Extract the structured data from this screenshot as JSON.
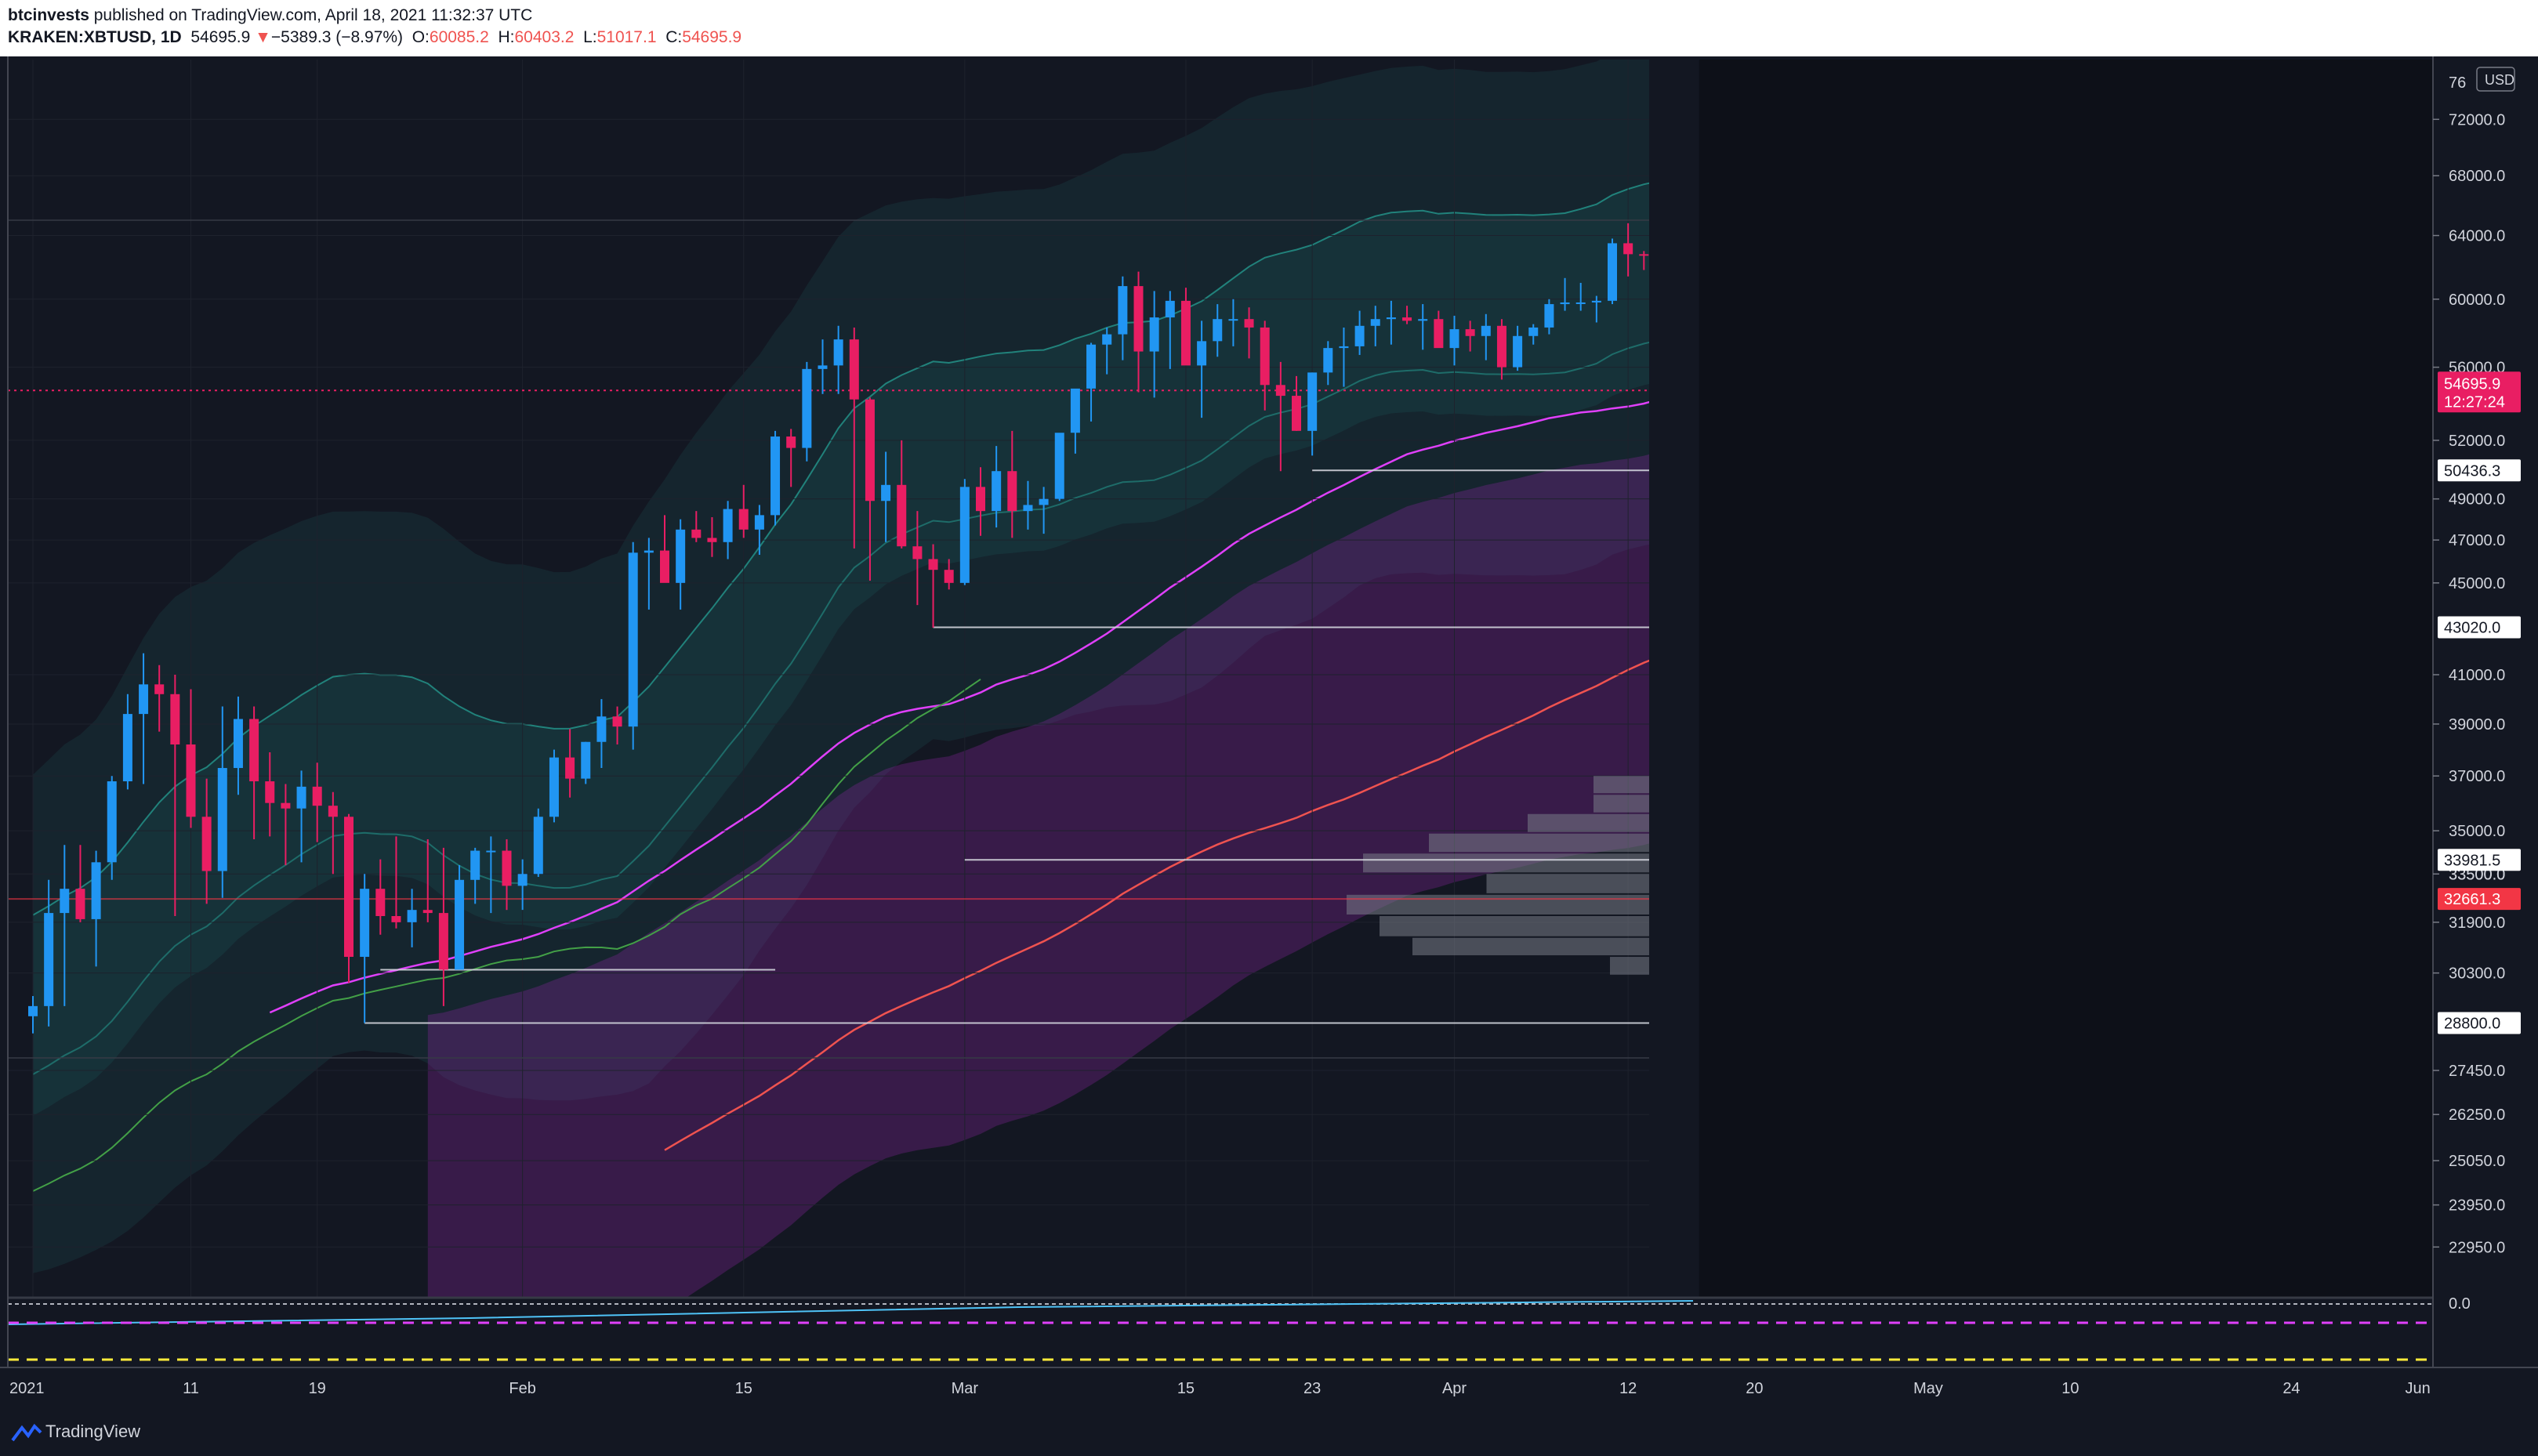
{
  "header": {
    "author": "btcinvests",
    "published_text": "published on TradingView.com, April 18, 2021 11:32:37 UTC",
    "symbol": "KRAKEN:XBTUSD, 1D",
    "last": "54695.9",
    "change_arrow": "▼",
    "change": "−5389.3 (−8.97%)",
    "o_label": "O:",
    "o_value": "60085.2",
    "h_label": "H:",
    "h_value": "60403.2",
    "l_label": "L:",
    "l_value": "51017.1",
    "c_label": "C:",
    "c_value": "54695.9"
  },
  "footer": {
    "brand": "TradingView"
  },
  "colors": {
    "background": "#131722",
    "up": "#2196f3",
    "down": "#e91e63",
    "teal_band": "#26a69a",
    "purple_band": "#9c27b0",
    "volume_profile": "#787b86",
    "zone": "#1b5e20",
    "price_label": "#e91e63",
    "red_level": "#f23645"
  },
  "chart_data": {
    "type": "candlestick",
    "title": "KRAKEN:XBTUSD, 1D",
    "y_scale": "log",
    "ylim": [
      21800,
      76500
    ],
    "currency_label": "USD",
    "y_ticks": [
      22950,
      23950,
      25050,
      26250,
      27450,
      30300,
      31900,
      33500,
      35000,
      37000,
      39000,
      41000,
      45000,
      47000,
      49000,
      52000,
      56000,
      60000,
      64000,
      68000,
      72000
    ],
    "y_tick_labels": [
      "22950.0",
      "23950.0",
      "25050.0",
      "26250.0",
      "27450.0",
      "30300.0",
      "31900.0",
      "33500.0",
      "35000.0",
      "37000.0",
      "39000.0",
      "41000.0",
      "45000.0",
      "47000.0",
      "49000.0",
      "52000.0",
      "56000.0",
      "60000.0",
      "64000.0",
      "68000.0",
      "72000.0"
    ],
    "top_cut_label": "76",
    "x_ticks": [
      {
        "day": 0,
        "label": "2021"
      },
      {
        "day": 10,
        "label": "11"
      },
      {
        "day": 18,
        "label": "19"
      },
      {
        "day": 31,
        "label": "Feb"
      },
      {
        "day": 45,
        "label": "15"
      },
      {
        "day": 59,
        "label": "Mar"
      },
      {
        "day": 73,
        "label": "15"
      },
      {
        "day": 81,
        "label": "23"
      },
      {
        "day": 90,
        "label": "Apr"
      },
      {
        "day": 101,
        "label": "12"
      },
      {
        "day": 109,
        "label": "20"
      },
      {
        "day": 120,
        "label": "May"
      },
      {
        "day": 129,
        "label": "10"
      },
      {
        "day": 143,
        "label": "24"
      },
      {
        "day": 151,
        "label": "Jun"
      }
    ],
    "start_date": "2021-01-01",
    "ohlc": [
      [
        29000,
        29600,
        28500,
        29300
      ],
      [
        29300,
        33300,
        28700,
        32200
      ],
      [
        32200,
        34500,
        29300,
        33000
      ],
      [
        33000,
        34500,
        31900,
        32000
      ],
      [
        32000,
        34300,
        30500,
        33900
      ],
      [
        33900,
        37000,
        33300,
        36800
      ],
      [
        36800,
        40200,
        36500,
        39400
      ],
      [
        39400,
        41900,
        36700,
        40600
      ],
      [
        40600,
        41400,
        38700,
        40200
      ],
      [
        40200,
        41000,
        32100,
        38200
      ],
      [
        38200,
        40400,
        35100,
        35500
      ],
      [
        35500,
        36900,
        32500,
        33600
      ],
      [
        33600,
        39700,
        32700,
        37300
      ],
      [
        37300,
        40100,
        36300,
        39200
      ],
      [
        39200,
        39700,
        34700,
        36800
      ],
      [
        36800,
        37900,
        34800,
        36000
      ],
      [
        36000,
        36700,
        33800,
        35800
      ],
      [
        35800,
        37200,
        33900,
        36600
      ],
      [
        36600,
        37500,
        34600,
        35900
      ],
      [
        35900,
        36400,
        33500,
        35500
      ],
      [
        35500,
        35600,
        30000,
        30800
      ],
      [
        30800,
        33500,
        28800,
        33000
      ],
      [
        33000,
        34000,
        31500,
        32100
      ],
      [
        32100,
        34800,
        31700,
        31900
      ],
      [
        31900,
        33000,
        31100,
        32300
      ],
      [
        32300,
        34700,
        31900,
        32200
      ],
      [
        32200,
        34400,
        29300,
        30400
      ],
      [
        30400,
        33800,
        30400,
        33300
      ],
      [
        33300,
        34400,
        32500,
        34300
      ],
      [
        34300,
        34800,
        32200,
        34300
      ],
      [
        34300,
        34700,
        32300,
        33100
      ],
      [
        33100,
        34000,
        32300,
        33500
      ],
      [
        33500,
        35800,
        33400,
        35500
      ],
      [
        35500,
        38000,
        35300,
        37700
      ],
      [
        37700,
        38800,
        36200,
        36900
      ],
      [
        36900,
        38300,
        36700,
        38300
      ],
      [
        38300,
        40000,
        37300,
        39300
      ],
      [
        39300,
        39700,
        38200,
        38900
      ],
      [
        38900,
        46900,
        38000,
        46400
      ],
      [
        46400,
        47100,
        43800,
        46500
      ],
      [
        46500,
        48200,
        45300,
        45000
      ],
      [
        45000,
        48000,
        43800,
        47500
      ],
      [
        47500,
        48400,
        46900,
        47100
      ],
      [
        47100,
        48100,
        46200,
        46900
      ],
      [
        46900,
        48900,
        46100,
        48500
      ],
      [
        48500,
        49700,
        47100,
        47500
      ],
      [
        47500,
        48700,
        46300,
        48200
      ],
      [
        48200,
        52500,
        47700,
        52200
      ],
      [
        52200,
        52600,
        49600,
        51600
      ],
      [
        51600,
        56300,
        50900,
        55900
      ],
      [
        55900,
        57600,
        54500,
        56100
      ],
      [
        56100,
        58400,
        54500,
        57600
      ],
      [
        57600,
        58300,
        46600,
        54200
      ],
      [
        54200,
        54300,
        45100,
        48900
      ],
      [
        48900,
        51400,
        46900,
        49700
      ],
      [
        49700,
        52000,
        46600,
        46700
      ],
      [
        46700,
        48400,
        44000,
        46100
      ],
      [
        46100,
        46800,
        43000,
        45600
      ],
      [
        45600,
        46100,
        44700,
        45000
      ],
      [
        45000,
        50000,
        44900,
        49600
      ],
      [
        49600,
        50600,
        47200,
        48400
      ],
      [
        48400,
        51700,
        47600,
        50400
      ],
      [
        50400,
        52500,
        47100,
        48400
      ],
      [
        48400,
        49900,
        47500,
        48700
      ],
      [
        48700,
        49600,
        47300,
        49000
      ],
      [
        49000,
        52300,
        48900,
        52400
      ],
      [
        52400,
        54700,
        51300,
        54800
      ],
      [
        54800,
        57400,
        53000,
        57300
      ],
      [
        57300,
        58300,
        55600,
        57900
      ],
      [
        57900,
        61400,
        56400,
        60800
      ],
      [
        60800,
        61700,
        54600,
        56900
      ],
      [
        56900,
        60500,
        54300,
        58900
      ],
      [
        58900,
        60500,
        55900,
        59900
      ],
      [
        59900,
        60700,
        56200,
        56100
      ],
      [
        56100,
        58700,
        53200,
        57500
      ],
      [
        57500,
        59700,
        56600,
        58800
      ],
      [
        58800,
        60000,
        57200,
        58800
      ],
      [
        58800,
        59500,
        56500,
        58300
      ],
      [
        58300,
        58700,
        53600,
        55000
      ],
      [
        55000,
        56300,
        50400,
        54400
      ],
      [
        54400,
        55500,
        52500,
        52500
      ],
      [
        52500,
        55700,
        51200,
        55700
      ],
      [
        55700,
        57500,
        55000,
        57100
      ],
      [
        57100,
        58300,
        54900,
        57200
      ],
      [
        57200,
        59300,
        56700,
        58400
      ],
      [
        58400,
        59600,
        57200,
        58800
      ],
      [
        58800,
        59900,
        57300,
        58900
      ],
      [
        58900,
        59600,
        58500,
        58700
      ],
      [
        58700,
        59700,
        57000,
        58800
      ],
      [
        58800,
        59300,
        57400,
        57100
      ],
      [
        57100,
        59000,
        56100,
        58200
      ],
      [
        58200,
        58700,
        56900,
        57800
      ],
      [
        57800,
        59100,
        56400,
        58400
      ],
      [
        58400,
        58800,
        55300,
        56000
      ],
      [
        56000,
        58400,
        55800,
        57800
      ],
      [
        57800,
        58500,
        57300,
        58300
      ],
      [
        58300,
        60000,
        57900,
        59700
      ],
      [
        59700,
        61300,
        59300,
        59800
      ],
      [
        59800,
        61000,
        59300,
        59800
      ],
      [
        59800,
        60200,
        58600,
        59900
      ],
      [
        59900,
        63800,
        59700,
        63500
      ],
      [
        63500,
        64800,
        61400,
        62800
      ],
      [
        62800,
        63000,
        61800,
        62700
      ],
      [
        62700,
        63600,
        60000,
        61300
      ],
      [
        61300,
        61600,
        59200,
        60100
      ],
      [
        60085.2,
        60403.2,
        51017.1,
        54695.9
      ]
    ],
    "last_price": {
      "value": 54695.9,
      "label": "54695.9",
      "countdown": "12:27:24"
    },
    "horizontal_levels": [
      {
        "price": 50436.3,
        "label": "50436.3",
        "from_day": 81
      },
      {
        "price": 43020.0,
        "label": "43020.0",
        "from_day": 57
      },
      {
        "price": 33981.5,
        "label": "33981.5",
        "from_day": 59
      },
      {
        "price": 32661.3,
        "label": "32661.3",
        "from_day": -1,
        "style": "red"
      },
      {
        "price": 30400.0,
        "label": "",
        "from_day": 22,
        "to_day": 47
      },
      {
        "price": 28800.0,
        "label": "28800.0",
        "from_day": 21
      }
    ],
    "partial_tick": {
      "price": 33500,
      "label": "33500.0"
    },
    "demand_zones": [
      {
        "low": 50900,
        "high": 53300
      },
      {
        "low": 42200,
        "high": 45100
      },
      {
        "low": 32800,
        "high": 35300
      }
    ],
    "volume_profile_rows": [
      {
        "low": 63600,
        "high": 65000,
        "vol": 0.1
      },
      {
        "low": 62200,
        "high": 63600,
        "vol": 0.25
      },
      {
        "low": 60900,
        "high": 62200,
        "vol": 0.3
      },
      {
        "low": 59600,
        "high": 60900,
        "vol": 0.4
      },
      {
        "low": 58300,
        "high": 59600,
        "vol": 0.5
      },
      {
        "low": 57100,
        "high": 58300,
        "vol": 0.72
      },
      {
        "low": 55900,
        "high": 57100,
        "vol": 0.78
      },
      {
        "low": 54800,
        "high": 55900,
        "vol": 0.72
      },
      {
        "low": 53600,
        "high": 54800,
        "vol": 0.55
      },
      {
        "low": 52500,
        "high": 53600,
        "vol": 0.4
      },
      {
        "low": 51500,
        "high": 52500,
        "vol": 0.6
      },
      {
        "low": 50400,
        "high": 51500,
        "vol": 0.68
      },
      {
        "low": 49400,
        "high": 50400,
        "vol": 0.82
      },
      {
        "low": 48400,
        "high": 49400,
        "vol": 0.76
      },
      {
        "low": 47400,
        "high": 48400,
        "vol": 0.7
      },
      {
        "low": 46400,
        "high": 47400,
        "vol": 0.8
      },
      {
        "low": 45400,
        "high": 46400,
        "vol": 0.74
      },
      {
        "low": 44500,
        "high": 45400,
        "vol": 0.45
      },
      {
        "low": 43600,
        "high": 44500,
        "vol": 0.3
      },
      {
        "low": 42700,
        "high": 43600,
        "vol": 0.4
      },
      {
        "low": 41800,
        "high": 42700,
        "vol": 0.25
      },
      {
        "low": 41000,
        "high": 41800,
        "vol": 0.1
      },
      {
        "low": 40200,
        "high": 41000,
        "vol": 0.33
      },
      {
        "low": 39400,
        "high": 40200,
        "vol": 0.42
      },
      {
        "low": 38600,
        "high": 39400,
        "vol": 0.6
      },
      {
        "low": 37800,
        "high": 38600,
        "vol": 0.65
      },
      {
        "low": 37000,
        "high": 37800,
        "vol": 0.82
      },
      {
        "low": 36300,
        "high": 37000,
        "vol": 1.02
      },
      {
        "low": 35600,
        "high": 36300,
        "vol": 1.02
      },
      {
        "low": 34900,
        "high": 35600,
        "vol": 1.1
      },
      {
        "low": 34200,
        "high": 34900,
        "vol": 1.22
      },
      {
        "low": 33500,
        "high": 34200,
        "vol": 1.3
      },
      {
        "low": 32800,
        "high": 33500,
        "vol": 1.15
      },
      {
        "low": 32100,
        "high": 32800,
        "vol": 1.32
      },
      {
        "low": 31400,
        "high": 32100,
        "vol": 1.28
      },
      {
        "low": 30800,
        "high": 31400,
        "vol": 1.24
      },
      {
        "low": 30200,
        "high": 30800,
        "vol": 1.0
      },
      {
        "low": 29600,
        "high": 30200,
        "vol": 0.55
      },
      {
        "low": 29000,
        "high": 29600,
        "vol": 0.37
      },
      {
        "low": 28400,
        "high": 29000,
        "vol": 0.4
      },
      {
        "low": 27800,
        "high": 28400,
        "vol": 0.1
      }
    ],
    "oscillator": {
      "zero_label": "0.0"
    }
  }
}
